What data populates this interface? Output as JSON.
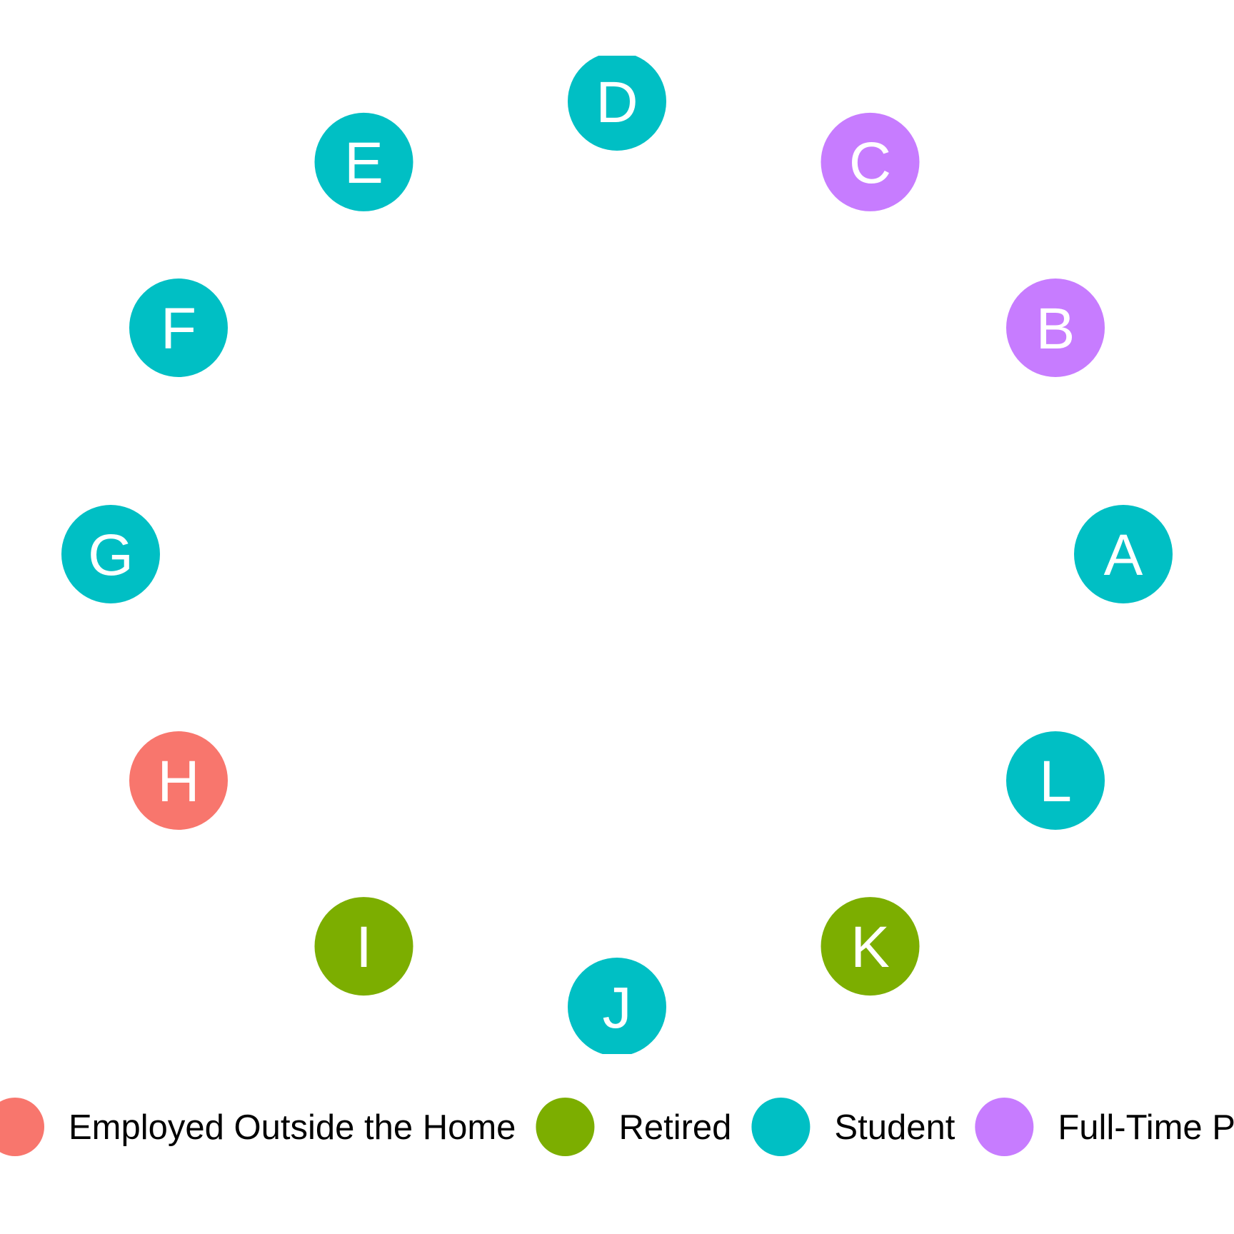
{
  "groups": [
    {
      "id": "employed",
      "label": "Employed Outside the Home",
      "color": "#F8766D"
    },
    {
      "id": "retired",
      "label": "Retired",
      "color": "#7CAE00"
    },
    {
      "id": "student",
      "label": "Student",
      "color": "#00BFC4"
    },
    {
      "id": "parent",
      "label": "Full-Time Parent",
      "color": "#C77CFF"
    }
  ],
  "nodes": [
    {
      "label": "A",
      "group": "student"
    },
    {
      "label": "B",
      "group": "parent"
    },
    {
      "label": "C",
      "group": "parent"
    },
    {
      "label": "D",
      "group": "student"
    },
    {
      "label": "E",
      "group": "student"
    },
    {
      "label": "F",
      "group": "student"
    },
    {
      "label": "G",
      "group": "student"
    },
    {
      "label": "H",
      "group": "employed"
    },
    {
      "label": "I",
      "group": "retired"
    },
    {
      "label": "J",
      "group": "student"
    },
    {
      "label": "K",
      "group": "retired"
    },
    {
      "label": "L",
      "group": "student"
    }
  ]
}
